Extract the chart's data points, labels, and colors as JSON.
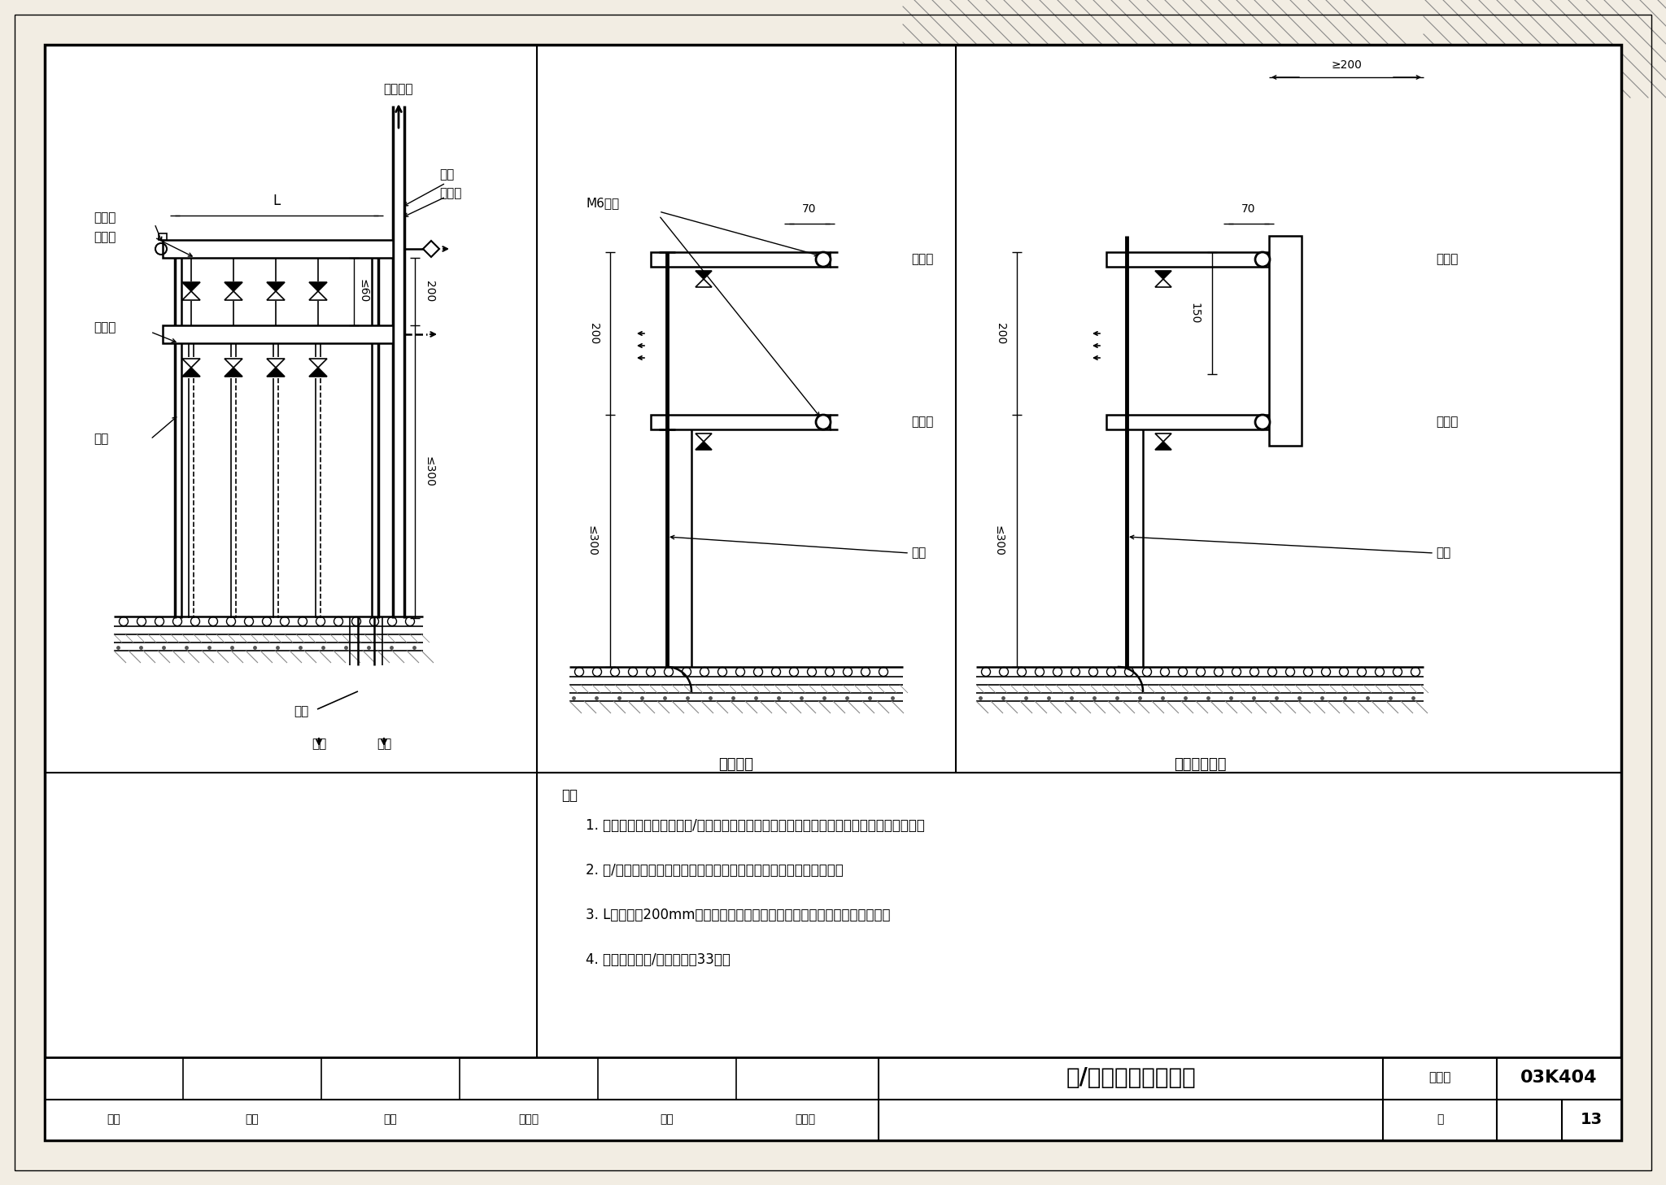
{
  "bg_color": "#f2ede3",
  "title": "分/集水器安装示意图",
  "title_num": "03K404",
  "page_label": "页",
  "page_num": "13",
  "label_shuiji_hao": "图集号",
  "label_shenhe": "审核",
  "label_jiaodui": "校对",
  "label_sheji": "设计",
  "shenhe_sig": "丁氏",
  "jiaodui_sig": "李定局",
  "sheji_sig": "张春术",
  "notes": [
    "1. 与集中供暖系统相连的分/集水器，宜设置过滤器及球阀。管道未经冲洗时，应关闭球阀。",
    "2. 分/集水器为支架固定，也可采用拖钉固定方式，嵌墙或筱罩安装。",
    "3. L不宜小于200mm。需设置热量表等装置时，应能满足装置的工作要求。",
    "4. 带筱安装的分/集水器见第33页。"
  ],
  "L_fenshui": "分水器",
  "L_jishui": "集水器",
  "L_zhijia": "支架",
  "L_faqiFA": "放气阀",
  "L_qiufa": "球阀",
  "L_guolv": "过滤器",
  "L_gongnuan": "供暖立管",
  "L_guitao": "套管",
  "L_huishui": "回水",
  "L_gongshui": "供水",
  "L_m6": "M6锶栓",
  "L_zhi_ming": "支架明装",
  "L_zhi_qian": "支架嵌墙安装",
  "note_pre": "注："
}
